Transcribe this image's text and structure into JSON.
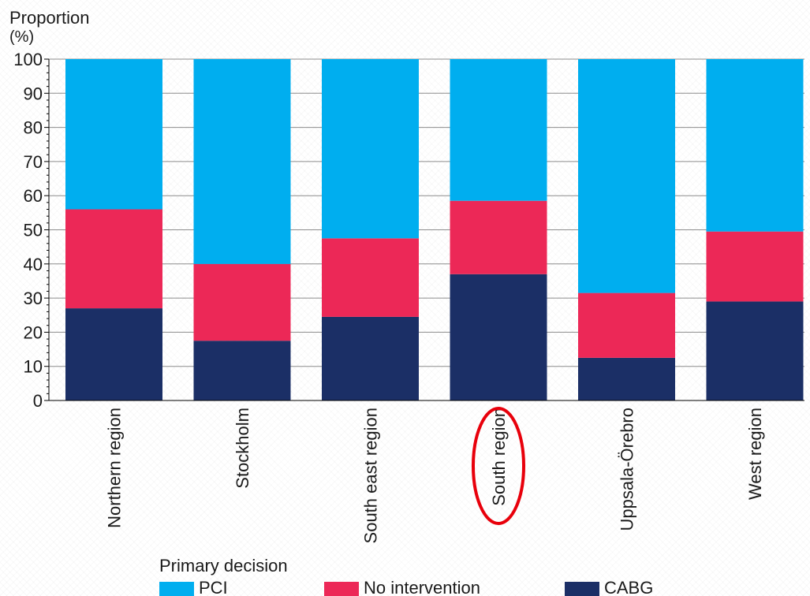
{
  "chart_data": {
    "type": "bar",
    "stacked": true,
    "ylabel_line1": "Proportion",
    "ylabel_line2": "(%)",
    "ylim": [
      0,
      100
    ],
    "yticks": [
      0,
      10,
      20,
      30,
      40,
      50,
      60,
      70,
      80,
      90,
      100
    ],
    "grid": true,
    "categories": [
      "Northern region",
      "Stockholm",
      "South east region",
      "South region",
      "Uppsala-Örebro",
      "West region"
    ],
    "series": [
      {
        "name": "CABG",
        "color": "#1b2f66",
        "values": [
          27,
          17.5,
          24.5,
          37,
          12.5,
          29
        ]
      },
      {
        "name": "No intervention",
        "color": "#ec2857",
        "values": [
          29,
          22.5,
          23,
          21.5,
          19,
          20.5
        ]
      },
      {
        "name": "PCI",
        "color": "#00aeef",
        "values": [
          44,
          60,
          52.5,
          41.5,
          68.5,
          50.5
        ]
      }
    ],
    "legend_title": "Primary decision",
    "legend_placement": "bottom",
    "legend_order": [
      "PCI",
      "No intervention",
      "CABG"
    ],
    "annotation": {
      "type": "ellipse",
      "color": "#e8000b",
      "target_category": "South region"
    }
  }
}
